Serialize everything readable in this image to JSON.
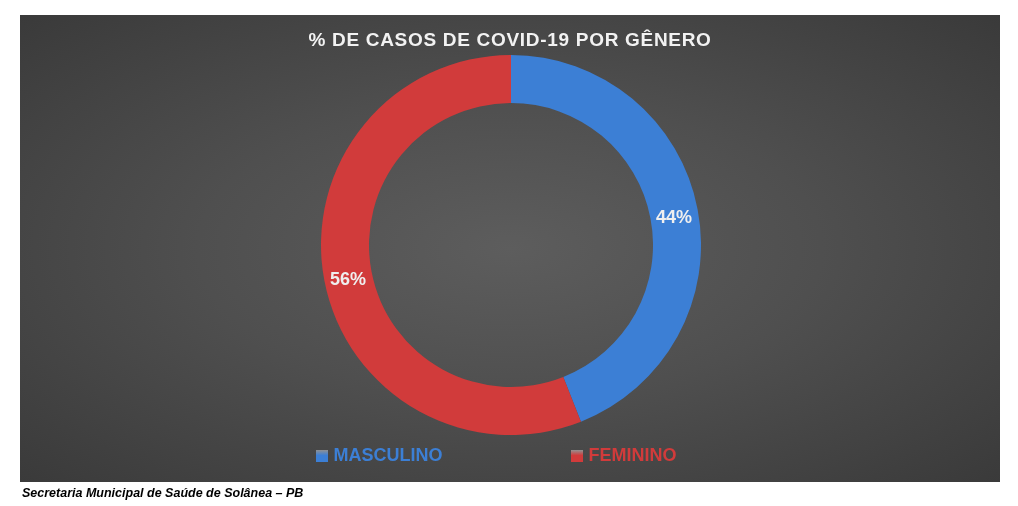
{
  "chart_data": {
    "type": "donut",
    "title": "% DE CASOS DE COVID-19 POR GÊNERO",
    "categories": [
      "MASCULINO",
      "FEMININO"
    ],
    "values": [
      44,
      56
    ],
    "colors": [
      "#3c7fd5",
      "#d13b3b"
    ],
    "value_labels": [
      "44%",
      "56%"
    ],
    "legend": "bottom",
    "annotations": [
      "Secretaria Municipal de Saúde de Solânea – PB"
    ]
  }
}
